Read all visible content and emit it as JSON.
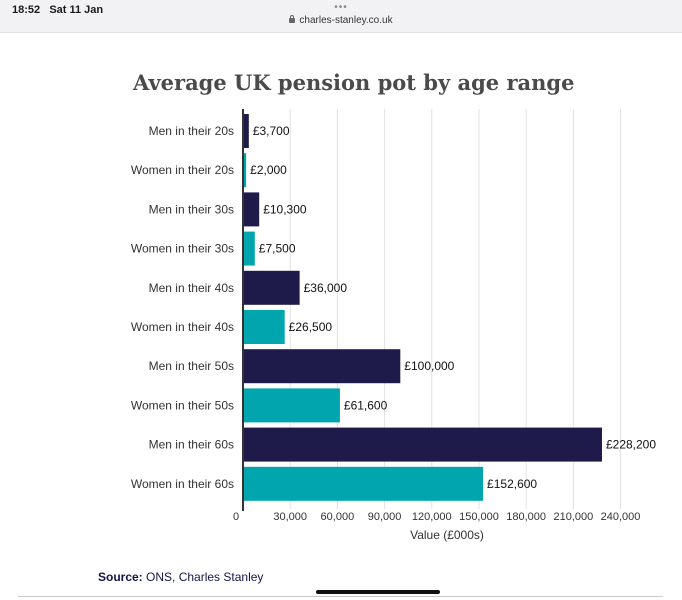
{
  "status": {
    "time": "18:52",
    "date": "Sat 11 Jan",
    "dots": "•••",
    "url": "charles-stanley.co.uk"
  },
  "chart_data": {
    "type": "bar",
    "orientation": "horizontal",
    "title": "Average UK pension pot by age range",
    "xlabel": "Value (£000s)",
    "ylabel": "",
    "xlim": [
      0,
      260000
    ],
    "xticks": [
      0,
      30000,
      60000,
      90000,
      120000,
      150000,
      180000,
      210000,
      240000
    ],
    "xtick_labels": [
      "0",
      "30,000",
      "60,000",
      "90,000",
      "120,000",
      "150,000",
      "180,000",
      "210,000",
      "240,000"
    ],
    "grid": true,
    "categories": [
      "Men in their 20s",
      "Women in their 20s",
      "Men in their 30s",
      "Women in their 30s",
      "Men in their 40s",
      "Women in their 40s",
      "Men in their 50s",
      "Women in their 50s",
      "Men in their 60s",
      "Women in their 60s"
    ],
    "values": [
      3700,
      2000,
      10300,
      7500,
      36000,
      26500,
      100000,
      61600,
      228200,
      152600
    ],
    "data_labels": [
      "£3,700",
      "£2,000",
      "£10,300",
      "£7,500",
      "£36,000",
      "£26,500",
      "£100,000",
      "£61,600",
      "£228,200",
      "£152,600"
    ],
    "colors": {
      "men": "#1e1b4b",
      "women": "#00a5ad",
      "grid": "#e1e1e1",
      "axis": "#333333",
      "text": "#333333"
    }
  },
  "source": {
    "label": "Source:",
    "text": "ONS, Charles Stanley"
  }
}
